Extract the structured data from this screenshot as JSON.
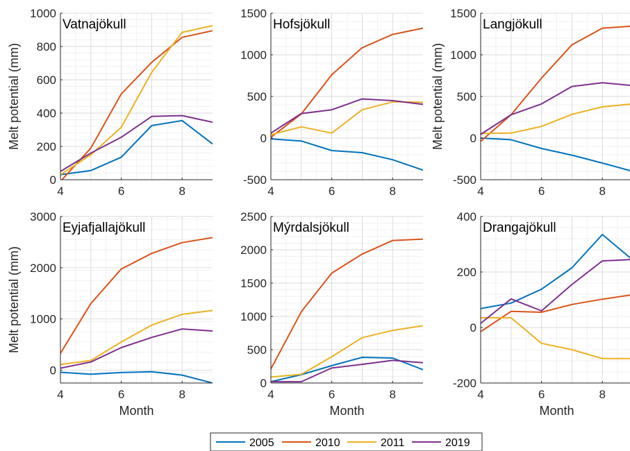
{
  "legend": {
    "entries": [
      {
        "name": "2005",
        "color": "#0072BD"
      },
      {
        "name": "2010",
        "color": "#D95319"
      },
      {
        "name": "2011",
        "color": "#EDB120"
      },
      {
        "name": "2019",
        "color": "#7E2F8E"
      }
    ],
    "placement": "bottom-center"
  },
  "chart_data": [
    {
      "type": "line",
      "title": "Vatnajökull",
      "xlabel": "",
      "ylabel": "Melt potential (mm)",
      "xlim": [
        4,
        9
      ],
      "ylim": [
        0,
        1000
      ],
      "x_ticks": [
        4,
        6,
        8
      ],
      "y_ticks": [
        0,
        200,
        400,
        600,
        800,
        1000
      ],
      "grid": true,
      "x": [
        4,
        5,
        6,
        7,
        8,
        9
      ],
      "series": [
        {
          "name": "2005",
          "values": [
            30,
            55,
            135,
            325,
            355,
            215
          ]
        },
        {
          "name": "2010",
          "values": [
            -10,
            190,
            515,
            705,
            855,
            895
          ]
        },
        {
          "name": "2011",
          "values": [
            30,
            150,
            315,
            645,
            885,
            925
          ]
        },
        {
          "name": "2019",
          "values": [
            50,
            160,
            255,
            380,
            385,
            345
          ]
        }
      ]
    },
    {
      "type": "line",
      "title": "Hofsjökull",
      "xlabel": "",
      "ylabel": "",
      "xlim": [
        4,
        9
      ],
      "ylim": [
        -500,
        1500
      ],
      "x_ticks": [
        4,
        6,
        8
      ],
      "y_ticks": [
        -500,
        0,
        500,
        1000,
        1500
      ],
      "grid": true,
      "x": [
        4,
        5,
        6,
        7,
        8,
        9
      ],
      "series": [
        {
          "name": "2005",
          "values": [
            -10,
            -35,
            -150,
            -175,
            -260,
            -385
          ]
        },
        {
          "name": "2010",
          "values": [
            10,
            290,
            760,
            1085,
            1245,
            1320
          ]
        },
        {
          "name": "2011",
          "values": [
            40,
            135,
            60,
            340,
            435,
            430
          ]
        },
        {
          "name": "2019",
          "values": [
            60,
            295,
            340,
            470,
            450,
            405
          ]
        }
      ]
    },
    {
      "type": "line",
      "title": "Langjökull",
      "xlabel": "",
      "ylabel": "Melt potential (mm)",
      "xlim": [
        4,
        9
      ],
      "ylim": [
        -500,
        1500
      ],
      "x_ticks": [
        4,
        6,
        8
      ],
      "y_ticks": [
        -500,
        0,
        500,
        1000,
        1500
      ],
      "grid": true,
      "x": [
        4,
        5,
        6,
        7,
        8,
        9
      ],
      "series": [
        {
          "name": "2005",
          "values": [
            0,
            -20,
            -125,
            -205,
            -300,
            -400
          ]
        },
        {
          "name": "2010",
          "values": [
            -40,
            280,
            720,
            1120,
            1320,
            1345
          ]
        },
        {
          "name": "2011",
          "values": [
            55,
            60,
            140,
            285,
            375,
            410
          ]
        },
        {
          "name": "2019",
          "values": [
            45,
            280,
            410,
            620,
            665,
            630
          ]
        }
      ]
    },
    {
      "type": "line",
      "title": "Eyjafjallajökull",
      "xlabel": "Month",
      "ylabel": "Melt potential (mm)",
      "xlim": [
        4,
        9
      ],
      "ylim": [
        -250,
        3000
      ],
      "x_ticks": [
        4,
        6,
        8
      ],
      "y_ticks": [
        0,
        1000,
        2000,
        3000
      ],
      "grid": true,
      "x": [
        4,
        5,
        6,
        7,
        8,
        9
      ],
      "series": [
        {
          "name": "2005",
          "values": [
            -40,
            -80,
            -45,
            -30,
            -95,
            -250
          ]
        },
        {
          "name": "2010",
          "values": [
            330,
            1300,
            1975,
            2280,
            2490,
            2590
          ]
        },
        {
          "name": "2011",
          "values": [
            110,
            190,
            550,
            880,
            1090,
            1165
          ]
        },
        {
          "name": "2019",
          "values": [
            40,
            160,
            440,
            640,
            805,
            765
          ]
        }
      ]
    },
    {
      "type": "line",
      "title": "Mýrdalsjökull",
      "xlabel": "Month",
      "ylabel": "",
      "xlim": [
        4,
        9
      ],
      "ylim": [
        0,
        2500
      ],
      "x_ticks": [
        4,
        6,
        8
      ],
      "y_ticks": [
        0,
        500,
        1000,
        1500,
        2000,
        2500
      ],
      "grid": true,
      "x": [
        4,
        5,
        6,
        7,
        8,
        9
      ],
      "series": [
        {
          "name": "2005",
          "values": [
            20,
            125,
            260,
            385,
            375,
            200
          ]
        },
        {
          "name": "2010",
          "values": [
            210,
            1070,
            1650,
            1935,
            2140,
            2160
          ]
        },
        {
          "name": "2011",
          "values": [
            90,
            130,
            395,
            680,
            790,
            860
          ]
        },
        {
          "name": "2019",
          "values": [
            20,
            20,
            225,
            280,
            340,
            305
          ]
        }
      ]
    },
    {
      "type": "line",
      "title": "Drangajökull",
      "xlabel": "Month",
      "ylabel": "",
      "xlim": [
        4,
        9
      ],
      "ylim": [
        -200,
        400
      ],
      "x_ticks": [
        4,
        6,
        8
      ],
      "y_ticks": [
        -200,
        0,
        200,
        400
      ],
      "grid": true,
      "x": [
        4,
        5,
        6,
        7,
        8,
        9
      ],
      "series": [
        {
          "name": "2005",
          "values": [
            68,
            88,
            138,
            215,
            335,
            243
          ]
        },
        {
          "name": "2010",
          "values": [
            -15,
            58,
            55,
            83,
            102,
            118
          ]
        },
        {
          "name": "2011",
          "values": [
            35,
            35,
            -57,
            -80,
            -112,
            -112
          ]
        },
        {
          "name": "2019",
          "values": [
            15,
            103,
            60,
            155,
            240,
            245
          ]
        }
      ]
    }
  ]
}
